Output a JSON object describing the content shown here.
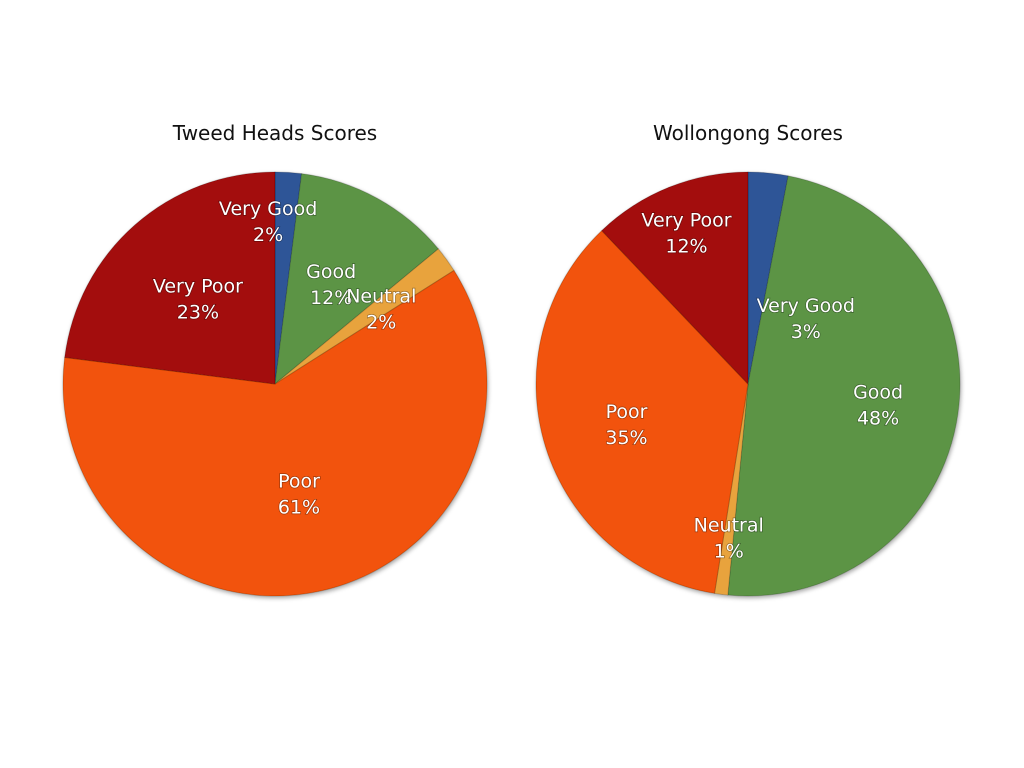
{
  "chart_data": [
    {
      "type": "pie",
      "title": "Tweed Heads Scores",
      "slices": [
        {
          "label": "Very Good",
          "value": 2,
          "value_label": "2%",
          "color": "#2f5597"
        },
        {
          "label": "Good",
          "value": 12,
          "value_label": "12%",
          "color": "#5b9444"
        },
        {
          "label": "Neutral",
          "value": 2,
          "value_label": "2%",
          "color": "#e8a33d"
        },
        {
          "label": "Poor",
          "value": 61,
          "value_label": "61%",
          "color": "#f25207"
        },
        {
          "label": "Very Poor",
          "value": 23,
          "value_label": "23%",
          "color": "#a30808"
        }
      ]
    },
    {
      "type": "pie",
      "title": "Wollongong Scores",
      "slices": [
        {
          "label": "Very Good",
          "value": 3,
          "value_label": "3%",
          "color": "#2f5597"
        },
        {
          "label": "Good",
          "value": 48,
          "value_label": "48%",
          "color": "#5b9444"
        },
        {
          "label": "Neutral",
          "value": 1,
          "value_label": "1%",
          "color": "#e8a33d"
        },
        {
          "label": "Poor",
          "value": 35,
          "value_label": "35%",
          "color": "#f25207"
        },
        {
          "label": "Very Poor",
          "value": 12,
          "value_label": "12%",
          "color": "#a30808"
        }
      ]
    }
  ]
}
